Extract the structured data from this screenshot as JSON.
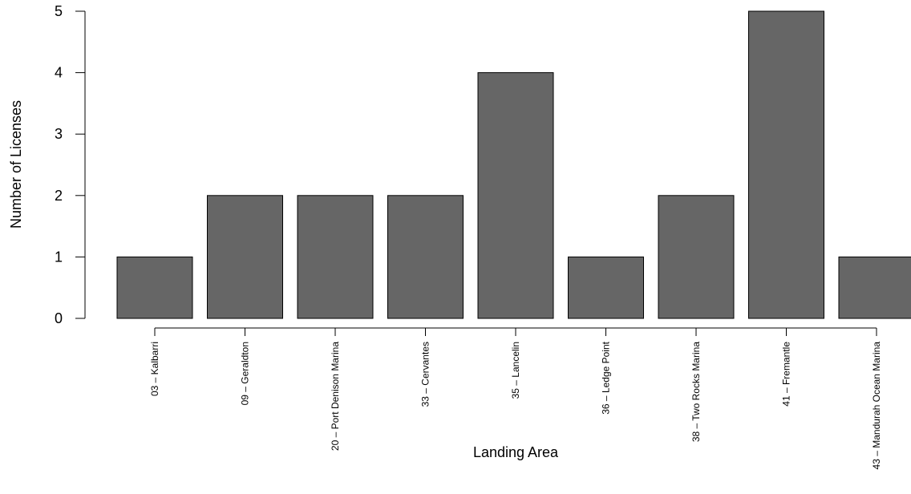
{
  "chart_data": {
    "type": "bar",
    "title": "",
    "xlabel": "Landing Area",
    "ylabel": "Number of Licenses",
    "categories": [
      "03 – Kalbarri",
      "09 – Geraldton",
      "20 – Port Denison Marina",
      "33 – Cervantes",
      "35 – Lancelin",
      "36 – Ledge Point",
      "38 – Two Rocks Marina",
      "41 – Fremantle",
      "43 – Mandurah Ocean Marina"
    ],
    "values": [
      1,
      2,
      2,
      2,
      4,
      1,
      2,
      5,
      1
    ],
    "ylim": [
      0,
      5
    ],
    "yticks": [
      0,
      1,
      2,
      3,
      4,
      5
    ],
    "grid": false,
    "bar_color": "#666666",
    "bar_edge_color": "#000000"
  }
}
